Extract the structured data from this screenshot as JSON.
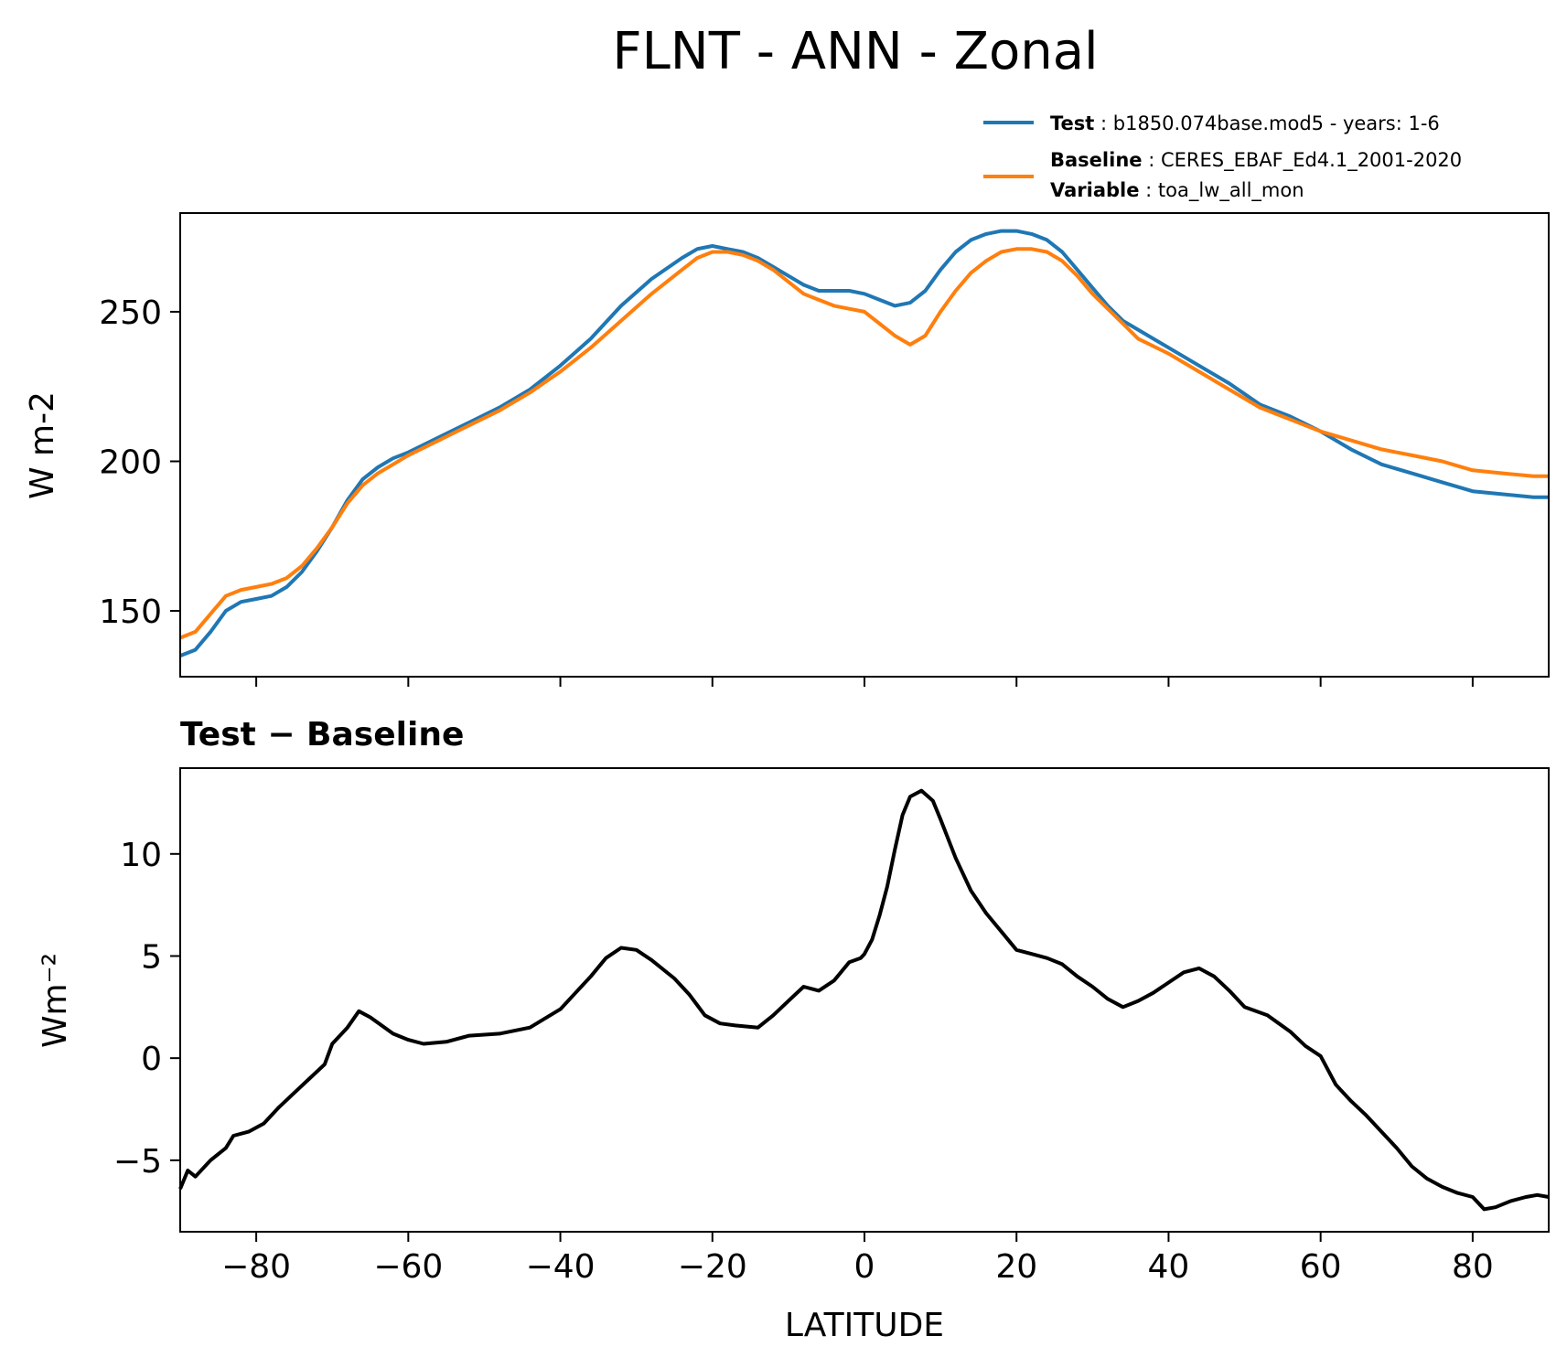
{
  "figure": {
    "title": "FLNT - ANN - Zonal"
  },
  "legend": {
    "test_key": "Test",
    "test_value": "b1850.074base.mod5 - years: 1-6",
    "baseline_key": "Baseline",
    "baseline_value": "CERES_EBAF_Ed4.1_2001-2020",
    "variable_key": "Variable",
    "variable_value": "toa_lw_all_mon"
  },
  "chart_data": [
    {
      "type": "line",
      "title": "",
      "xlabel": "",
      "ylabel": "W m-2",
      "xlim": [
        -90,
        90
      ],
      "ylim": [
        128,
        283
      ],
      "x_ticks": [
        -80,
        -60,
        -40,
        -20,
        0,
        20,
        40,
        60,
        80
      ],
      "y_ticks": [
        150,
        200,
        250
      ],
      "grid": false,
      "legend_position": "above-right",
      "series": [
        {
          "name": "Test",
          "color": "#1f77b4",
          "points": [
            [
              -90,
              135
            ],
            [
              -88,
              137
            ],
            [
              -86,
              143
            ],
            [
              -84,
              150
            ],
            [
              -82,
              153
            ],
            [
              -80,
              154
            ],
            [
              -78,
              155
            ],
            [
              -76,
              158
            ],
            [
              -74,
              163
            ],
            [
              -72,
              170
            ],
            [
              -70,
              178
            ],
            [
              -68,
              187
            ],
            [
              -66,
              194
            ],
            [
              -64,
              198
            ],
            [
              -62,
              201
            ],
            [
              -60,
              203
            ],
            [
              -56,
              208
            ],
            [
              -52,
              213
            ],
            [
              -48,
              218
            ],
            [
              -44,
              224
            ],
            [
              -40,
              232
            ],
            [
              -36,
              241
            ],
            [
              -32,
              252
            ],
            [
              -28,
              261
            ],
            [
              -24,
              268
            ],
            [
              -22,
              271
            ],
            [
              -20,
              272
            ],
            [
              -18,
              271
            ],
            [
              -16,
              270
            ],
            [
              -14,
              268
            ],
            [
              -12,
              265
            ],
            [
              -10,
              262
            ],
            [
              -8,
              259
            ],
            [
              -6,
              257
            ],
            [
              -4,
              257
            ],
            [
              -2,
              257
            ],
            [
              0,
              256
            ],
            [
              2,
              254
            ],
            [
              4,
              252
            ],
            [
              6,
              253
            ],
            [
              8,
              257
            ],
            [
              10,
              264
            ],
            [
              12,
              270
            ],
            [
              14,
              274
            ],
            [
              16,
              276
            ],
            [
              18,
              277
            ],
            [
              20,
              277
            ],
            [
              22,
              276
            ],
            [
              24,
              274
            ],
            [
              26,
              270
            ],
            [
              28,
              264
            ],
            [
              30,
              258
            ],
            [
              32,
              252
            ],
            [
              34,
              247
            ],
            [
              36,
              244
            ],
            [
              40,
              238
            ],
            [
              44,
              232
            ],
            [
              48,
              226
            ],
            [
              52,
              219
            ],
            [
              56,
              215
            ],
            [
              60,
              210
            ],
            [
              64,
              204
            ],
            [
              68,
              199
            ],
            [
              72,
              196
            ],
            [
              76,
              193
            ],
            [
              80,
              190
            ],
            [
              84,
              189
            ],
            [
              88,
              188
            ],
            [
              90,
              188
            ]
          ]
        },
        {
          "name": "Baseline",
          "color": "#ff7f0e",
          "points": [
            [
              -90,
              141
            ],
            [
              -88,
              143
            ],
            [
              -86,
              149
            ],
            [
              -84,
              155
            ],
            [
              -82,
              157
            ],
            [
              -80,
              158
            ],
            [
              -78,
              159
            ],
            [
              -76,
              161
            ],
            [
              -74,
              165
            ],
            [
              -72,
              171
            ],
            [
              -70,
              178
            ],
            [
              -68,
              186
            ],
            [
              -66,
              192
            ],
            [
              -64,
              196
            ],
            [
              -62,
              199
            ],
            [
              -60,
              202
            ],
            [
              -56,
              207
            ],
            [
              -52,
              212
            ],
            [
              -48,
              217
            ],
            [
              -44,
              223
            ],
            [
              -40,
              230
            ],
            [
              -36,
              238
            ],
            [
              -32,
              247
            ],
            [
              -28,
              256
            ],
            [
              -24,
              264
            ],
            [
              -22,
              268
            ],
            [
              -20,
              270
            ],
            [
              -18,
              270
            ],
            [
              -16,
              269
            ],
            [
              -14,
              267
            ],
            [
              -12,
              264
            ],
            [
              -10,
              260
            ],
            [
              -8,
              256
            ],
            [
              -6,
              254
            ],
            [
              -4,
              252
            ],
            [
              -2,
              251
            ],
            [
              0,
              250
            ],
            [
              2,
              246
            ],
            [
              4,
              242
            ],
            [
              6,
              239
            ],
            [
              8,
              242
            ],
            [
              10,
              250
            ],
            [
              12,
              257
            ],
            [
              14,
              263
            ],
            [
              16,
              267
            ],
            [
              18,
              270
            ],
            [
              20,
              271
            ],
            [
              22,
              271
            ],
            [
              24,
              270
            ],
            [
              26,
              267
            ],
            [
              28,
              262
            ],
            [
              30,
              256
            ],
            [
              32,
              251
            ],
            [
              34,
              246
            ],
            [
              36,
              241
            ],
            [
              40,
              236
            ],
            [
              44,
              230
            ],
            [
              48,
              224
            ],
            [
              52,
              218
            ],
            [
              56,
              214
            ],
            [
              60,
              210
            ],
            [
              64,
              207
            ],
            [
              68,
              204
            ],
            [
              72,
              202
            ],
            [
              76,
              200
            ],
            [
              80,
              197
            ],
            [
              84,
              196
            ],
            [
              88,
              195
            ],
            [
              90,
              195
            ]
          ]
        }
      ]
    },
    {
      "type": "line",
      "title": "Test − Baseline",
      "xlabel": "LATITUDE",
      "ylabel": "Wm⁻²",
      "xlim": [
        -90,
        90
      ],
      "ylim": [
        -8.5,
        14.2
      ],
      "x_ticks": [
        -80,
        -60,
        -40,
        -20,
        0,
        20,
        40,
        60,
        80
      ],
      "y_ticks": [
        -5,
        0,
        5,
        10
      ],
      "grid": false,
      "series": [
        {
          "name": "Test − Baseline",
          "color": "#000000",
          "points": [
            [
              -90,
              -6.4
            ],
            [
              -89,
              -5.5
            ],
            [
              -88,
              -5.8
            ],
            [
              -86,
              -5.0
            ],
            [
              -84,
              -4.4
            ],
            [
              -83,
              -3.8
            ],
            [
              -81,
              -3.6
            ],
            [
              -79,
              -3.2
            ],
            [
              -77,
              -2.4
            ],
            [
              -75,
              -1.7
            ],
            [
              -73,
              -1.0
            ],
            [
              -71,
              -0.3
            ],
            [
              -70,
              0.7
            ],
            [
              -68,
              1.5
            ],
            [
              -66.5,
              2.3
            ],
            [
              -65,
              2.0
            ],
            [
              -62,
              1.2
            ],
            [
              -60,
              0.9
            ],
            [
              -58,
              0.7
            ],
            [
              -55,
              0.8
            ],
            [
              -52,
              1.1
            ],
            [
              -48,
              1.2
            ],
            [
              -44,
              1.5
            ],
            [
              -40,
              2.4
            ],
            [
              -38,
              3.2
            ],
            [
              -36,
              4.0
            ],
            [
              -34,
              4.9
            ],
            [
              -32,
              5.4
            ],
            [
              -30,
              5.3
            ],
            [
              -28,
              4.8
            ],
            [
              -25,
              3.9
            ],
            [
              -23,
              3.1
            ],
            [
              -21,
              2.1
            ],
            [
              -19,
              1.7
            ],
            [
              -17,
              1.6
            ],
            [
              -14,
              1.5
            ],
            [
              -12,
              2.1
            ],
            [
              -10,
              2.8
            ],
            [
              -8,
              3.5
            ],
            [
              -6,
              3.3
            ],
            [
              -4,
              3.8
            ],
            [
              -2,
              4.7
            ],
            [
              -0.5,
              4.9
            ],
            [
              0,
              5.1
            ],
            [
              1,
              5.8
            ],
            [
              2,
              7.0
            ],
            [
              3,
              8.4
            ],
            [
              4,
              10.2
            ],
            [
              5,
              11.9
            ],
            [
              6,
              12.8
            ],
            [
              7.5,
              13.1
            ],
            [
              9,
              12.6
            ],
            [
              10,
              11.7
            ],
            [
              12,
              9.8
            ],
            [
              14,
              8.2
            ],
            [
              16,
              7.1
            ],
            [
              18,
              6.2
            ],
            [
              20,
              5.3
            ],
            [
              22,
              5.1
            ],
            [
              24,
              4.9
            ],
            [
              26,
              4.6
            ],
            [
              28,
              4.0
            ],
            [
              30,
              3.5
            ],
            [
              32,
              2.9
            ],
            [
              34,
              2.5
            ],
            [
              36,
              2.8
            ],
            [
              38,
              3.2
            ],
            [
              40,
              3.7
            ],
            [
              42,
              4.2
            ],
            [
              44,
              4.4
            ],
            [
              46,
              4.0
            ],
            [
              48,
              3.3
            ],
            [
              50,
              2.5
            ],
            [
              53,
              2.1
            ],
            [
              56,
              1.3
            ],
            [
              58,
              0.6
            ],
            [
              60,
              0.1
            ],
            [
              62,
              -1.3
            ],
            [
              64,
              -2.1
            ],
            [
              66,
              -2.8
            ],
            [
              68,
              -3.6
            ],
            [
              70,
              -4.4
            ],
            [
              72,
              -5.3
            ],
            [
              74,
              -5.9
            ],
            [
              76,
              -6.3
            ],
            [
              78,
              -6.6
            ],
            [
              80,
              -6.8
            ],
            [
              81.5,
              -7.4
            ],
            [
              83,
              -7.3
            ],
            [
              85,
              -7.0
            ],
            [
              87,
              -6.8
            ],
            [
              88.5,
              -6.7
            ],
            [
              90,
              -6.8
            ]
          ]
        }
      ]
    }
  ]
}
